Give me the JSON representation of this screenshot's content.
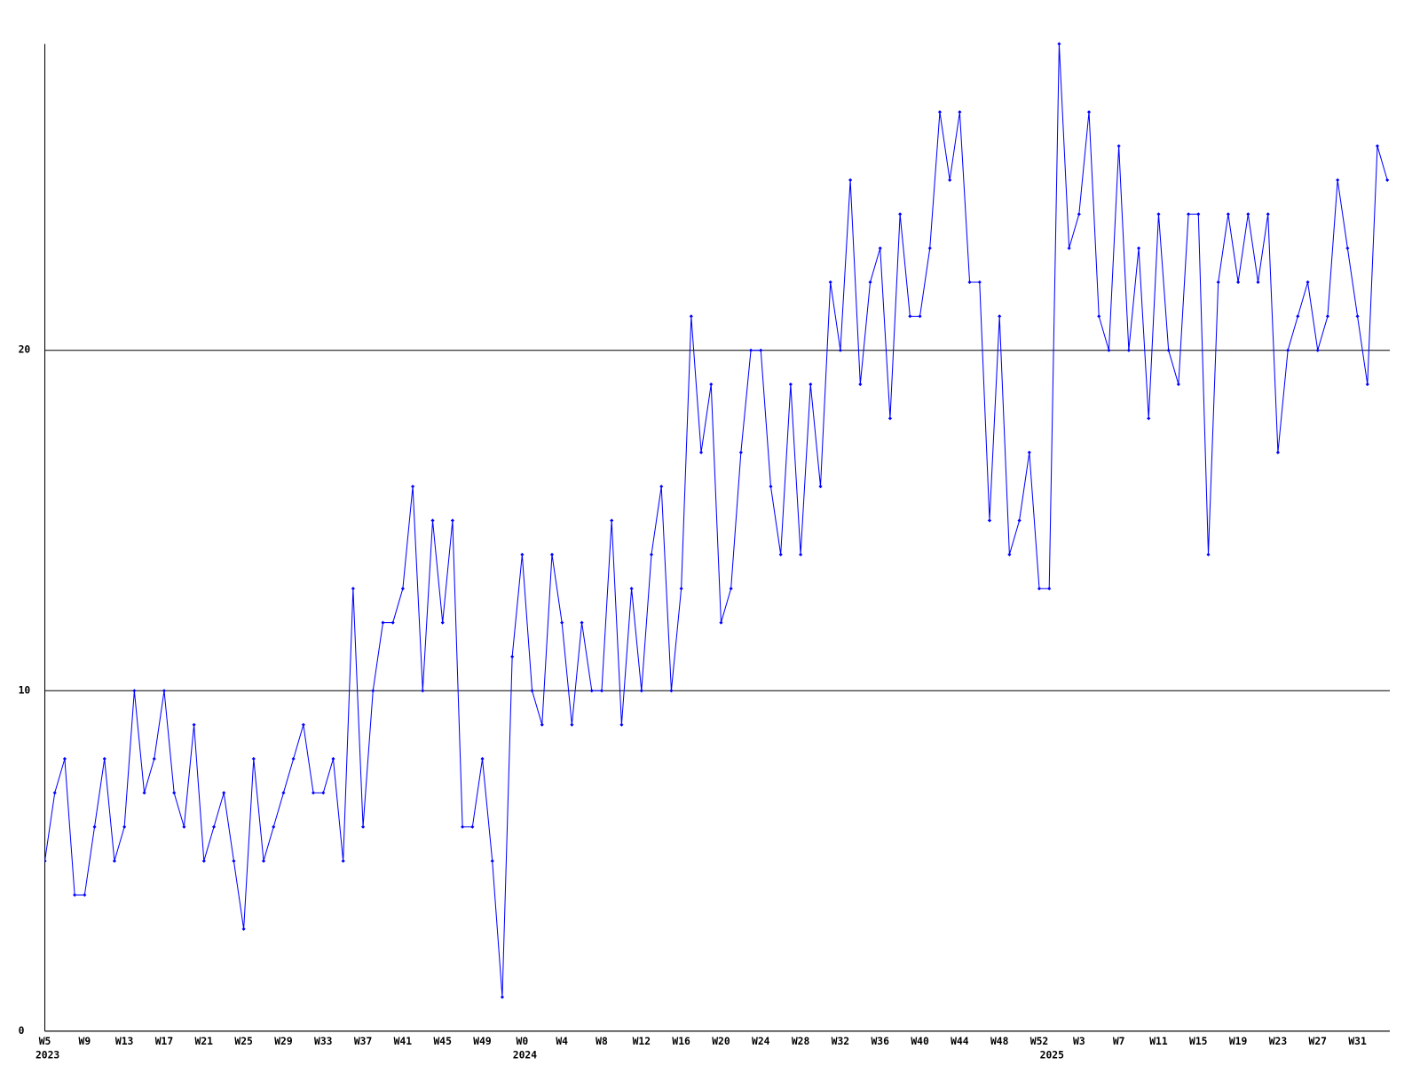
{
  "chart_data": {
    "type": "line",
    "categories": [
      "W5",
      null,
      null,
      null,
      "W9",
      null,
      null,
      null,
      "W13",
      null,
      null,
      null,
      "W17",
      null,
      null,
      null,
      "W21",
      null,
      null,
      null,
      "W25",
      null,
      null,
      null,
      "W29",
      null,
      null,
      null,
      "W33",
      null,
      null,
      null,
      "W37",
      null,
      null,
      null,
      "W41",
      null,
      null,
      null,
      "W45",
      null,
      null,
      null,
      "W49",
      null,
      null,
      null,
      "W0",
      null,
      null,
      null,
      "W4",
      null,
      null,
      null,
      "W8",
      null,
      null,
      null,
      "W12",
      null,
      null,
      null,
      "W16",
      null,
      null,
      null,
      "W20",
      null,
      null,
      null,
      "W24",
      null,
      null,
      null,
      "W28",
      null,
      null,
      null,
      "W32",
      null,
      null,
      null,
      "W36",
      null,
      null,
      null,
      "W40",
      null,
      null,
      null,
      "W44",
      null,
      null,
      null,
      "W48",
      null,
      null,
      null,
      "W52",
      null,
      null,
      null,
      "W3",
      null,
      null,
      null,
      "W7",
      null,
      null,
      null,
      "W11",
      null,
      null,
      null,
      "W15",
      null,
      null,
      null,
      "W19",
      null,
      null,
      null,
      "W23",
      null,
      null,
      null,
      "W27",
      null,
      null,
      null,
      "W31",
      null,
      null,
      null
    ],
    "category_groups": [
      "2023",
      null,
      null,
      null,
      null,
      null,
      null,
      null,
      null,
      null,
      null,
      null,
      null,
      null,
      null,
      null,
      null,
      null,
      null,
      null,
      null,
      null,
      null,
      null,
      null,
      null,
      null,
      null,
      null,
      null,
      null,
      null,
      null,
      null,
      null,
      null,
      null,
      null,
      null,
      null,
      null,
      null,
      null,
      null,
      null,
      null,
      null,
      null,
      "2024",
      null,
      null,
      null,
      null,
      null,
      null,
      null,
      null,
      null,
      null,
      null,
      null,
      null,
      null,
      null,
      null,
      null,
      null,
      null,
      null,
      null,
      null,
      null,
      null,
      null,
      null,
      null,
      null,
      null,
      null,
      null,
      null,
      null,
      null,
      null,
      null,
      null,
      null,
      null,
      null,
      null,
      null,
      null,
      null,
      null,
      null,
      null,
      null,
      null,
      null,
      null,
      null,
      "2025",
      null,
      null,
      null,
      null,
      null,
      null,
      null,
      null,
      null,
      null,
      null,
      null,
      null,
      null,
      null,
      null,
      null,
      null,
      null,
      null,
      null,
      null,
      null,
      null,
      null,
      null,
      null,
      null,
      null,
      null,
      null,
      null,
      null,
      null
    ],
    "values": [
      5,
      7,
      8,
      4,
      4,
      6,
      8,
      5,
      6,
      10,
      7,
      8,
      10,
      7,
      6,
      9,
      5,
      6,
      7,
      5,
      3,
      8,
      5,
      6,
      7,
      8,
      9,
      7,
      7,
      8,
      5,
      13,
      6,
      10,
      12,
      12,
      13,
      16,
      10,
      15,
      12,
      15,
      6,
      6,
      8,
      5,
      1,
      11,
      14,
      10,
      9,
      14,
      12,
      9,
      12,
      10,
      10,
      15,
      9,
      13,
      10,
      14,
      16,
      10,
      13,
      21,
      17,
      19,
      12,
      13,
      17,
      20,
      20,
      16,
      14,
      19,
      14,
      19,
      16,
      22,
      20,
      25,
      19,
      22,
      23,
      18,
      24,
      21,
      21,
      23,
      27,
      25,
      27,
      22,
      22,
      15,
      21,
      14,
      15,
      17,
      13,
      13,
      29,
      23,
      24,
      27,
      21,
      20,
      26,
      20,
      23,
      18,
      24,
      20,
      19,
      24,
      24,
      14,
      22,
      24,
      22,
      24,
      22,
      24,
      17,
      20,
      21,
      22,
      20,
      21,
      25,
      23,
      21,
      19,
      26,
      25
    ],
    "color": "#0000ff",
    "ylim": [
      0,
      29
    ],
    "yticks": [
      0,
      10,
      20
    ],
    "grid": true
  }
}
